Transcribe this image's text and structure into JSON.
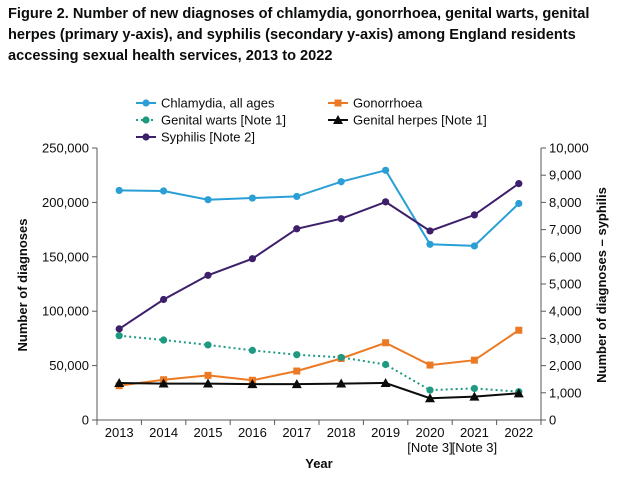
{
  "chart_data": {
    "type": "line",
    "title": "Figure 2. Number of new diagnoses of chlamydia, gonorrhoea, genital warts, genital herpes (primary y-axis), and syphilis (secondary y-axis) among England residents accessing sexual health services, 2013 to 2022",
    "xlabel": "Year",
    "ylabel": "Number of diagnoses",
    "y2label": "Number of diagnoses – syphilis",
    "categories": [
      "2013",
      "2014",
      "2015",
      "2016",
      "2017",
      "2018",
      "2019",
      "2020",
      "2021",
      "2022"
    ],
    "category_notes": [
      "",
      "",
      "",
      "",
      "",
      "",
      "",
      "[Note 3]",
      "[Note 3]",
      ""
    ],
    "ylim": [
      0,
      250000
    ],
    "y2lim": [
      0,
      10000
    ],
    "yticks": [
      "0",
      "50,000",
      "100,000",
      "150,000",
      "200,000",
      "250,000"
    ],
    "y2ticks": [
      "0",
      "1,000",
      "2,000",
      "3,000",
      "4,000",
      "5,000",
      "6,000",
      "7,000",
      "8,000",
      "9,000",
      "10,000"
    ],
    "grid": false,
    "legend": "top",
    "series": [
      {
        "name": "Chlamydia, all ages",
        "axis": "primary",
        "color": "#2a9fd6",
        "marker": "circle",
        "dash": "solid",
        "values": [
          211000,
          210500,
          202500,
          204000,
          205500,
          219000,
          229500,
          161500,
          160000,
          199000
        ]
      },
      {
        "name": "Gonorrhoea",
        "axis": "primary",
        "color": "#ec7a24",
        "marker": "square",
        "dash": "solid",
        "values": [
          31500,
          37000,
          41000,
          36500,
          45000,
          56500,
          71000,
          50500,
          55000,
          82500
        ]
      },
      {
        "name": "Genital warts [Note 1]",
        "axis": "primary",
        "color": "#1e9a82",
        "marker": "circle",
        "dash": "dotted",
        "values": [
          77500,
          73500,
          69000,
          64000,
          60000,
          57500,
          51000,
          27500,
          29000,
          26000
        ]
      },
      {
        "name": "Genital herpes [Note 1]",
        "axis": "primary",
        "color": "#0b0c0c",
        "marker": "triangle",
        "dash": "solid",
        "values": [
          34000,
          33500,
          33500,
          33000,
          33000,
          33500,
          34000,
          20000,
          21500,
          24500
        ]
      },
      {
        "name": "Syphilis [Note 2]",
        "axis": "secondary",
        "color": "#3d1f6b",
        "marker": "circle",
        "dash": "solid",
        "values": [
          3350,
          4430,
          5320,
          5930,
          7030,
          7400,
          8020,
          6950,
          7540,
          8690
        ]
      }
    ]
  }
}
